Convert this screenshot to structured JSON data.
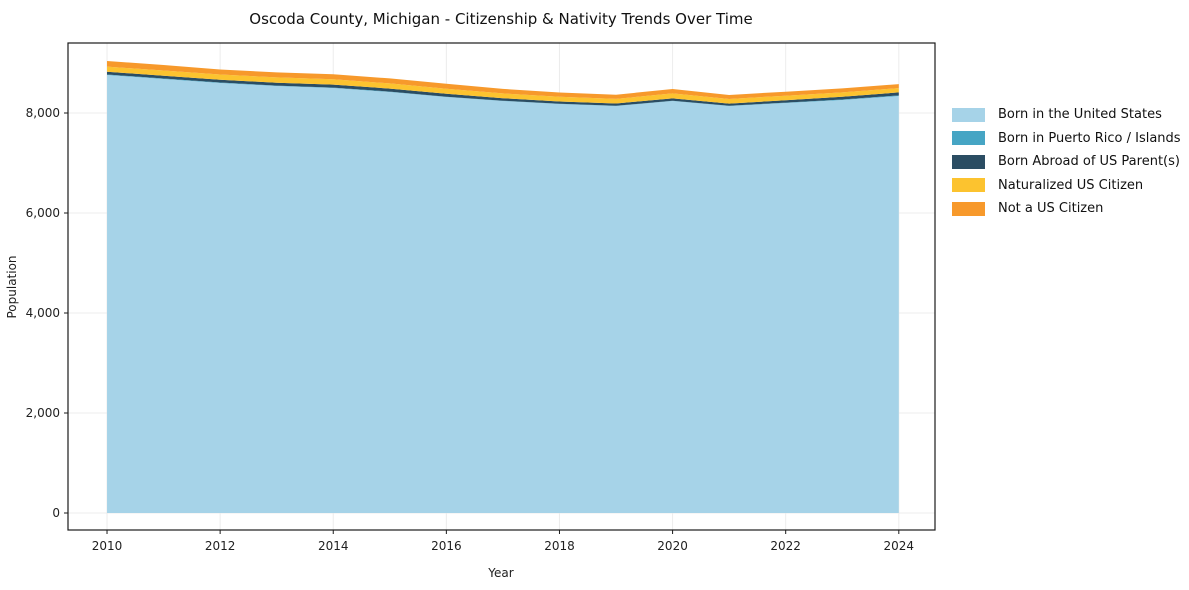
{
  "chart": {
    "title": "Oscoda County, Michigan - Citizenship & Nativity Trends Over Time",
    "xlabel": "Year",
    "ylabel": "Population"
  },
  "chart_data": {
    "type": "area",
    "stacked": true,
    "title": "Oscoda County, Michigan - Citizenship & Nativity Trends Over Time",
    "xlabel": "Year",
    "ylabel": "Population",
    "grid": true,
    "grid_color": "#ececec",
    "spine_color": "#1a1a1a",
    "legend_position": "right-outside",
    "xlim": [
      2009.31,
      2024.64
    ],
    "ylim": [
      -340,
      9400
    ],
    "x": [
      2010,
      2011,
      2012,
      2013,
      2014,
      2015,
      2016,
      2017,
      2018,
      2019,
      2020,
      2021,
      2022,
      2023,
      2024
    ],
    "xticks": {
      "values": [
        2010,
        2012,
        2014,
        2016,
        2018,
        2020,
        2022,
        2024
      ],
      "labels": [
        "2010",
        "2012",
        "2014",
        "2016",
        "2018",
        "2020",
        "2022",
        "2024"
      ]
    },
    "yticks": {
      "values": [
        0,
        2000,
        4000,
        6000,
        8000
      ],
      "labels": [
        "0",
        "2,000",
        "4,000",
        "6,000",
        "8,000"
      ]
    },
    "series": [
      {
        "name": "Born in the United States",
        "color": "#a6d3e8",
        "values": [
          8760,
          8680,
          8600,
          8540,
          8500,
          8420,
          8320,
          8240,
          8180,
          8140,
          8240,
          8140,
          8200,
          8260,
          8340
        ]
      },
      {
        "name": "Born in Puerto Rico / Islands",
        "color": "#46a5c4",
        "values": [
          10,
          10,
          10,
          8,
          8,
          8,
          6,
          6,
          5,
          5,
          5,
          5,
          8,
          10,
          12
        ]
      },
      {
        "name": "Born Abroad of US Parent(s)",
        "color": "#2b4d63",
        "values": [
          55,
          55,
          55,
          58,
          60,
          60,
          58,
          50,
          46,
          45,
          48,
          42,
          48,
          55,
          60
        ]
      },
      {
        "name": "Naturalized US Citizen",
        "color": "#fcc32f",
        "values": [
          102,
          104,
          106,
          106,
          106,
          104,
          100,
          96,
          94,
          92,
          100,
          94,
          90,
          88,
          86
        ]
      },
      {
        "name": "Not a US Citizen",
        "color": "#f7992b",
        "values": [
          114,
          110,
          100,
          100,
          100,
          100,
          100,
          90,
          86,
          84,
          86,
          80,
          80,
          80,
          80
        ]
      }
    ]
  }
}
